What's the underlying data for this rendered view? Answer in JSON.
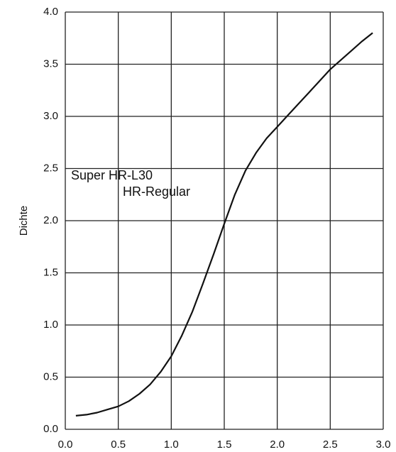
{
  "chart_data": {
    "type": "line",
    "y_label": "Dichte",
    "annotations": [
      "Super HR-L30",
      "HR-Regular"
    ],
    "x": [
      0.1,
      0.2,
      0.3,
      0.4,
      0.5,
      0.6,
      0.7,
      0.8,
      0.9,
      1.0,
      1.1,
      1.2,
      1.3,
      1.4,
      1.5,
      1.6,
      1.7,
      1.8,
      1.9,
      2.0,
      2.1,
      2.2,
      2.3,
      2.4,
      2.5,
      2.6,
      2.7,
      2.8,
      2.9
    ],
    "series": [
      {
        "color": "#111111",
        "values": [
          0.13,
          0.14,
          0.16,
          0.19,
          0.22,
          0.27,
          0.34,
          0.43,
          0.55,
          0.7,
          0.9,
          1.13,
          1.4,
          1.68,
          1.97,
          2.25,
          2.48,
          2.65,
          2.79,
          2.9,
          3.01,
          3.12,
          3.23,
          3.34,
          3.45,
          3.54,
          3.63,
          3.72,
          3.8
        ]
      }
    ],
    "xlim": [
      0,
      3
    ],
    "ylim": [
      0,
      4
    ],
    "xticks": [
      {
        "value": 0,
        "label": "0.0"
      },
      0.5,
      {
        "value": 1,
        "label": "1.0"
      },
      1.5,
      {
        "value": 2,
        "label": "2.0"
      },
      2.5,
      {
        "value": 3,
        "label": "3.0"
      }
    ],
    "yticks": [
      {
        "value": 0,
        "label": "0.0"
      },
      0.5,
      {
        "value": 1,
        "label": "1.0"
      },
      1.5,
      {
        "value": 2,
        "label": "2.0"
      },
      2.5,
      {
        "value": 3,
        "label": "3.0"
      },
      3.5,
      {
        "value": 4,
        "label": "4.0"
      }
    ],
    "grid": true
  }
}
